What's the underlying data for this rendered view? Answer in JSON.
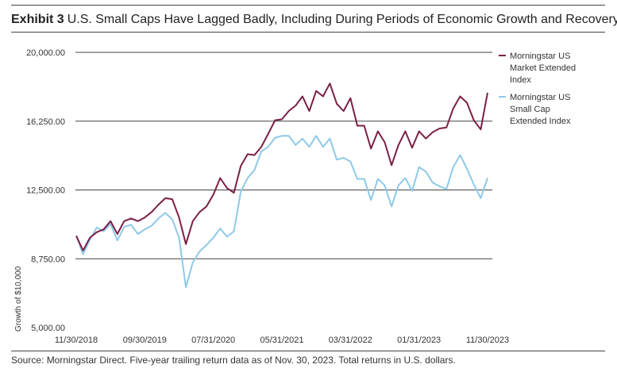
{
  "header": {
    "exhibit_label": "Exhibit 3",
    "title": "U.S. Small Caps Have Lagged Badly, Including During Periods of Economic Growth and Recovery"
  },
  "footer": {
    "source": "Source: Morningstar Direct. Five-year trailing return data as of Nov. 30, 2023. Total returns in U.S. dollars."
  },
  "colors": {
    "market_extended": "#7b1f45",
    "small_cap_extended": "#8ec9e8",
    "grid": "#444444"
  },
  "chart_data": {
    "type": "line",
    "ylabel": "Growth of $10,000",
    "ylim": [
      5000,
      20000
    ],
    "yticks": [
      "20,000.00",
      "16,250.00",
      "12,500.00",
      "8,750.00",
      "5,000.00"
    ],
    "ytick_values": [
      20000,
      16250,
      12500,
      8750,
      5000
    ],
    "xticks": [
      "11/30/2018",
      "09/30/2019",
      "07/31/2020",
      "05/31/2021",
      "03/31/2022",
      "01/31/2023",
      "11/30/2023"
    ],
    "xtick_index": [
      0,
      10,
      20,
      30,
      40,
      50,
      60
    ],
    "grid": "horizontal",
    "legend_position": "top-right",
    "x": [
      "11/30/2018",
      "12/31/2018",
      "01/31/2019",
      "02/28/2019",
      "03/31/2019",
      "04/30/2019",
      "05/31/2019",
      "06/30/2019",
      "07/31/2019",
      "08/31/2019",
      "09/30/2019",
      "10/31/2019",
      "11/30/2019",
      "12/31/2019",
      "01/31/2020",
      "02/29/2020",
      "03/31/2020",
      "04/30/2020",
      "05/31/2020",
      "06/30/2020",
      "07/31/2020",
      "08/31/2020",
      "09/30/2020",
      "10/31/2020",
      "11/30/2020",
      "12/31/2020",
      "01/31/2021",
      "02/28/2021",
      "03/31/2021",
      "04/30/2021",
      "05/31/2021",
      "06/30/2021",
      "07/31/2021",
      "08/31/2021",
      "09/30/2021",
      "10/31/2021",
      "11/30/2021",
      "12/31/2021",
      "01/31/2022",
      "02/28/2022",
      "03/31/2022",
      "04/30/2022",
      "05/31/2022",
      "06/30/2022",
      "07/31/2022",
      "08/31/2022",
      "09/30/2022",
      "10/31/2022",
      "11/30/2022",
      "12/31/2022",
      "01/31/2023",
      "02/28/2023",
      "03/31/2023",
      "04/30/2023",
      "05/31/2023",
      "06/30/2023",
      "07/31/2023",
      "08/31/2023",
      "09/30/2023",
      "10/31/2023",
      "11/30/2023"
    ],
    "series": [
      {
        "name": "Morningstar US Market Extended Index",
        "values": [
          10000,
          9200,
          9900,
          10200,
          10350,
          10800,
          10100,
          10800,
          10950,
          10800,
          11000,
          11300,
          11700,
          12050,
          12000,
          11000,
          9550,
          10800,
          11300,
          11600,
          12250,
          13150,
          12600,
          12350,
          13800,
          14450,
          14400,
          14850,
          15550,
          16300,
          16350,
          16800,
          17100,
          17600,
          16800,
          17900,
          17600,
          18300,
          17200,
          16800,
          17500,
          16000,
          16000,
          14750,
          15700,
          15100,
          13850,
          14950,
          15700,
          14800,
          15700,
          15300,
          15650,
          15850,
          15900,
          16950,
          17600,
          17250,
          16300,
          15800,
          17800
        ]
      },
      {
        "name": "Morningstar US Small Cap Extended Index",
        "values": [
          10000,
          9000,
          9800,
          10450,
          10250,
          10650,
          9750,
          10500,
          10600,
          10100,
          10350,
          10550,
          10950,
          11250,
          10900,
          9900,
          7200,
          8550,
          9150,
          9500,
          9900,
          10400,
          9950,
          10250,
          12400,
          13150,
          13600,
          14600,
          14850,
          15350,
          15450,
          15450,
          14950,
          15300,
          14850,
          15450,
          14850,
          15300,
          14150,
          14250,
          14050,
          13100,
          13100,
          11950,
          13100,
          12750,
          11600,
          12750,
          13150,
          12450,
          13750,
          13500,
          12900,
          12700,
          12550,
          13750,
          14400,
          13650,
          12800,
          12050,
          13150
        ]
      }
    ]
  }
}
